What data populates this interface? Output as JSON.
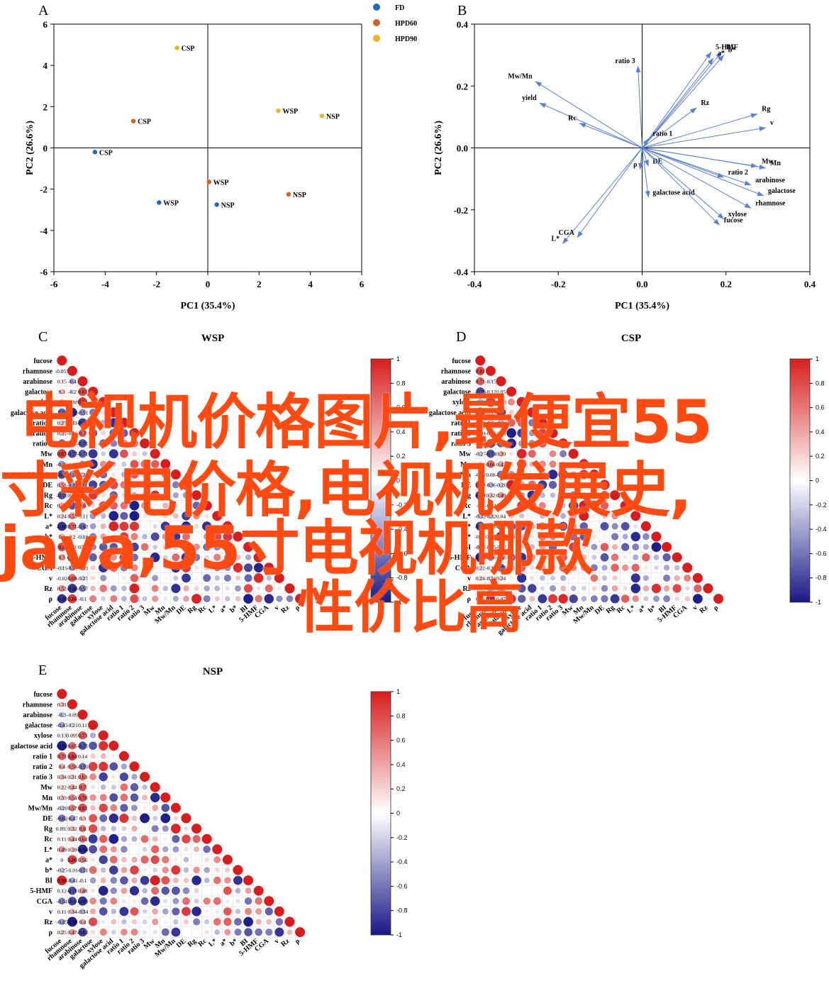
{
  "chart_data": [
    {
      "type": "scatter",
      "panel": "A",
      "title": "",
      "xlabel": "PC1 (35.4%)",
      "ylabel": "PC2 (26.6%)",
      "xlim": [
        -6,
        6
      ],
      "ylim": [
        -6,
        6
      ],
      "xticks": [
        "-6",
        "-4",
        "-2",
        "0",
        "2",
        "4",
        "6"
      ],
      "yticks": [
        "6",
        "4",
        "2",
        "0",
        "-2",
        "-4",
        "-6"
      ],
      "legend": "top-center",
      "series": [
        {
          "name": "FD",
          "color": "#1f6bbf",
          "points": [
            {
              "x": -4.4,
              "y": -0.2,
              "label": "CSP"
            },
            {
              "x": -1.9,
              "y": -2.65,
              "label": "WSP"
            },
            {
              "x": 0.35,
              "y": -2.75,
              "label": "NSP"
            }
          ]
        },
        {
          "name": "HPD60",
          "color": "#d4602a",
          "points": [
            {
              "x": -2.9,
              "y": 1.3,
              "label": "CSP"
            },
            {
              "x": 0.05,
              "y": -1.65,
              "label": "WSP"
            },
            {
              "x": 3.15,
              "y": -2.25,
              "label": "NSP"
            }
          ]
        },
        {
          "name": "HPD90",
          "color": "#f2b21c",
          "points": [
            {
              "x": -1.2,
              "y": 4.85,
              "label": "CSP"
            },
            {
              "x": 2.75,
              "y": 1.8,
              "label": "WSP"
            },
            {
              "x": 4.45,
              "y": 1.55,
              "label": "NSP"
            }
          ]
        }
      ]
    },
    {
      "type": "biplot",
      "panel": "B",
      "title": "",
      "xlabel": "PC1 (35.4%)",
      "ylabel": "PC2 (26.6%)",
      "xlim": [
        -0.4,
        0.4
      ],
      "ylim": [
        -0.4,
        0.4
      ],
      "xticks": [
        "-0.4",
        "-0.2",
        "0.0",
        "0.2",
        "0.4"
      ],
      "yticks": [
        "0.4",
        "0.2",
        "0.0",
        "-0.2",
        "-0.4"
      ],
      "color": "#5a7fd6",
      "vectors": [
        {
          "label": "5-HMF",
          "x": 0.165,
          "y": 0.31
        },
        {
          "label": "BI",
          "x": 0.19,
          "y": 0.31
        },
        {
          "label": "a*",
          "x": 0.17,
          "y": 0.29
        },
        {
          "label": "b*",
          "x": 0.195,
          "y": 0.3
        },
        {
          "label": "ratio 3",
          "x": -0.01,
          "y": 0.265
        },
        {
          "label": "Mw/Mn",
          "x": -0.255,
          "y": 0.215
        },
        {
          "label": "yield",
          "x": -0.245,
          "y": 0.145
        },
        {
          "label": "Rc",
          "x": -0.15,
          "y": 0.08
        },
        {
          "label": "Rz",
          "x": 0.13,
          "y": 0.13
        },
        {
          "label": "Rg",
          "x": 0.275,
          "y": 0.11
        },
        {
          "label": "v",
          "x": 0.295,
          "y": 0.065
        },
        {
          "label": "ratio 1",
          "x": 0.015,
          "y": 0.03
        },
        {
          "label": "DE",
          "x": 0.015,
          "y": -0.06
        },
        {
          "label": "ρ",
          "x": -0.005,
          "y": -0.07
        },
        {
          "label": "Mw",
          "x": 0.275,
          "y": -0.06
        },
        {
          "label": "Mn",
          "x": 0.295,
          "y": -0.065
        },
        {
          "label": "ratio 2",
          "x": 0.195,
          "y": -0.095
        },
        {
          "label": "arabinose",
          "x": 0.26,
          "y": -0.12
        },
        {
          "label": "galactose",
          "x": 0.29,
          "y": -0.155
        },
        {
          "label": "galactose acid",
          "x": 0.015,
          "y": -0.16
        },
        {
          "label": "rhamnose",
          "x": 0.26,
          "y": -0.195
        },
        {
          "label": "xylose",
          "x": 0.195,
          "y": -0.23
        },
        {
          "label": "fucose",
          "x": 0.185,
          "y": -0.25
        },
        {
          "label": "L*",
          "x": -0.19,
          "y": -0.31
        },
        {
          "label": "CGA",
          "x": -0.155,
          "y": -0.29
        }
      ]
    },
    {
      "type": "heatmap",
      "panel": "C",
      "title": "WSP",
      "variables": [
        "fucose",
        "rhamnose",
        "arabinose",
        "galactose",
        "xylose",
        "galactose acid",
        "ratio 1",
        "ratio 2",
        "ratio 3",
        "Mw",
        "Mn",
        "Mw/Mn",
        "DE",
        "Rg",
        "Rc",
        "L*",
        "a*",
        "b*",
        "BI",
        "5-HMF",
        "CGA",
        "v",
        "Rz",
        "ρ"
      ],
      "row_labels_visible": [
        "fucose",
        "rhamnose",
        "arabinose",
        "ga",
        "xylo",
        "galactose acid",
        "ratio",
        "ratio",
        "ratio 3",
        "Mw",
        "Mw/Mn",
        "DE",
        "Rc",
        "L*",
        "5-HMF",
        "CGA",
        "v",
        "Rz",
        "ρ"
      ],
      "colorbar": {
        "min": -1,
        "max": 1,
        "ticks": [
          "1",
          "0.8",
          "0.6",
          "0.4",
          "0.2",
          "0",
          "-0.2",
          "-0.4",
          "-0.6",
          "-0.8",
          "-1"
        ]
      },
      "sample_values": {
        "rhamnose|fucose": -0.055,
        "arabinose|fucose": 0.15
      }
    },
    {
      "type": "heatmap",
      "panel": "D",
      "title": "CSP",
      "variables": [
        "fucose",
        "rhamnose",
        "arabinose",
        "galactose",
        "xylose",
        "galactose acid",
        "ratio 1",
        "ratio 2",
        "ratio 3",
        "Mw",
        "Mn",
        "Mw/Mn",
        "DE",
        "Rg",
        "Rc",
        "L*",
        "a*",
        "b*",
        "BI",
        "5-HMF",
        "CGA",
        "v",
        "Rz",
        "ρ"
      ],
      "row_labels_visible": [
        "fucose",
        "rhamnose",
        "arabinose",
        "galactose",
        "xylose",
        "ctose acid",
        "ratio 1",
        "ratio 2",
        "ratio 3",
        "Mn",
        "Mw/Mn",
        "DE",
        "Rg",
        "Rc",
        "L*",
        "a*",
        "b*",
        "BI",
        "5-HMF",
        "CGA",
        "v",
        "Rz",
        "ρ"
      ],
      "colorbar": {
        "min": -1,
        "max": 1,
        "ticks": [
          "1",
          "0.8",
          "0.6",
          "0.4",
          "0.2",
          "0",
          "-0.2",
          "-0.4",
          "-0.6",
          "-0.8",
          "-1"
        ]
      }
    },
    {
      "type": "heatmap",
      "panel": "E",
      "title": "NSP",
      "variables": [
        "fucose",
        "rhamnose",
        "arabinose",
        "galactose",
        "xylose",
        "galactose acid",
        "ratio 1",
        "ratio 2",
        "ratio 3",
        "Mw",
        "Mn",
        "Mw/Mn",
        "DE",
        "Rg",
        "Rc",
        "L*",
        "a*",
        "b*",
        "BI",
        "5-HMF",
        "CGA",
        "v",
        "Rz",
        "ρ"
      ],
      "colorbar": {
        "min": -1,
        "max": 1,
        "ticks": [
          "1",
          "0.8",
          "0.6",
          "0.4",
          "0.2",
          "0",
          "-0.2",
          "-0.4",
          "-0.6",
          "-0.8",
          "-1"
        ]
      },
      "sample_values": {
        "galactose|fucose": -0.43,
        "galactose|rhamnose": -0.21,
        "galactose|arabinose": 0.11,
        "xylose|fucose": 0.13,
        "xylose|rhamnose": 0.099,
        "Mw|fucose": 0.22,
        "Mw|rhamnose": 0.44,
        "Mw|arabinose": 0.7,
        "Mn|fucose": 0.33,
        "Mn|rhamnose": 0.54,
        "Mn|arabinose": 0.78,
        "Rg|fucose": 0.093,
        "Rg|rhamnose": 0.32,
        "Rg|arabinose": 0.6,
        "Rc|rhamnose": 0.44,
        "L*|fucose": 0.49,
        "L*|rhamnose": 0.28,
        "v|fucose": 0.11,
        "v|rhamnose": 0.34,
        "ρ|fucose": 0.25,
        "ρ|rhamnose": 0.47
      }
    }
  ],
  "overlay_text": [
    "电视机价格图片,最便宜55",
    "寸彩电价格,电视机发展史,",
    "java,55寸电视机哪款",
    "性价比高"
  ]
}
